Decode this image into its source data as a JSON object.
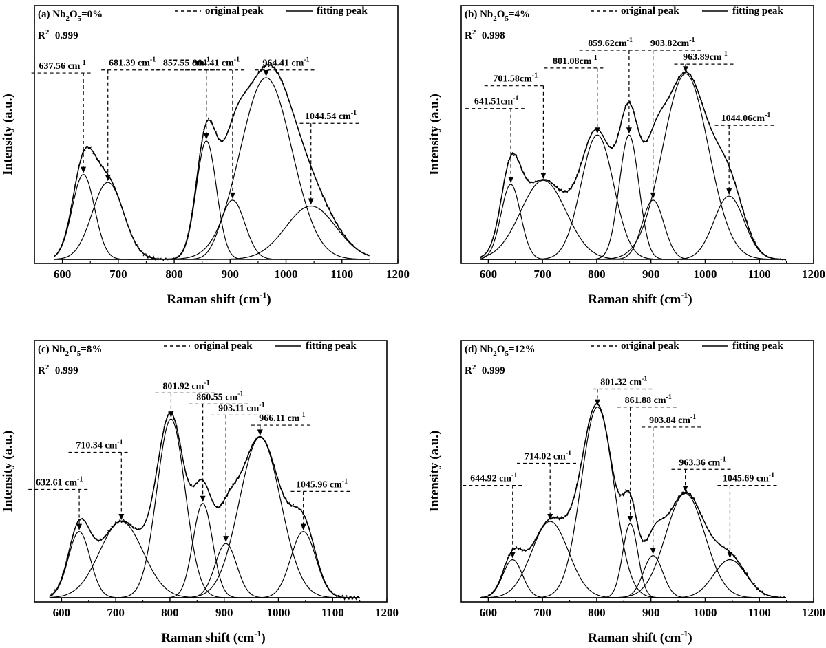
{
  "chart_data": [
    {
      "type": "line",
      "panel_label": "(a)",
      "composition": {
        "prefix": "Nb",
        "sub1": "2",
        "mid": "O",
        "sub2": "5",
        "value": "=0%"
      },
      "r_squared": {
        "prefix": "R",
        "sup": "2",
        "value": "=0.999"
      },
      "legend": {
        "original": "original peak",
        "fitting": "fitting peak",
        "position": "top-right"
      },
      "xlabel": {
        "text": "Raman shift (cm",
        "sup": "-1",
        "close": ")"
      },
      "ylabel": "Intensity (a.u.)",
      "xlim": [
        550,
        1200
      ],
      "xticks": [
        "600",
        "700",
        "800",
        "900",
        "1000",
        "1100",
        "1200"
      ],
      "ylim": [
        0,
        1
      ],
      "x_range": [
        585,
        1150
      ],
      "peaks": [
        {
          "label": "637.56 cm",
          "sup": "-1",
          "center": 637.56,
          "height": 0.43,
          "sigma": 20,
          "label_x": 600,
          "label_y": 0.965
        },
        {
          "label": "681.39 cm",
          "sup": "-1",
          "center": 681.39,
          "height": 0.39,
          "sigma": 28,
          "label_x": 725,
          "label_y": 0.98
        },
        {
          "label": "857.55 cm",
          "sup": "-1",
          "center": 857.55,
          "height": 0.6,
          "sigma": 18,
          "label_x": 822,
          "label_y": 0.98
        },
        {
          "label": "904.41 cm",
          "sup": "-1",
          "center": 904.41,
          "height": 0.3,
          "sigma": 22,
          "label_x": 875,
          "label_y": 0.98
        },
        {
          "label": "964.41 cm",
          "sup": "-1",
          "center": 964.41,
          "height": 0.92,
          "sigma": 46,
          "label_x": 1000,
          "label_y": 0.98
        },
        {
          "label": "1044.54 cm",
          "sup": "-1",
          "center": 1044.54,
          "height": 0.27,
          "sigma": 45,
          "label_x": 1080,
          "label_y": 0.71
        }
      ]
    },
    {
      "type": "line",
      "panel_label": "(b)",
      "composition": {
        "prefix": "Nb",
        "sub1": "2",
        "mid": "O",
        "sub2": "5",
        "value": "=4%"
      },
      "r_squared": {
        "prefix": "R",
        "sup": "2",
        "value": "=0.998"
      },
      "legend": {
        "original": "original peak",
        "fitting": "fitting peak",
        "position": "top-right"
      },
      "xlabel": {
        "text": "Raman shift (cm",
        "sup": "-1",
        "close": ")"
      },
      "ylabel": "Intensity (a.u.)",
      "xlim": [
        550,
        1200
      ],
      "xticks": [
        "600",
        "700",
        "800",
        "900",
        "1000",
        "1100",
        "1200"
      ],
      "ylim": [
        0,
        1
      ],
      "x_range": [
        585,
        1150
      ],
      "peaks": [
        {
          "label": "641.51cm",
          "sup": "-1",
          "center": 641.51,
          "height": 0.38,
          "sigma": 18,
          "label_x": 615,
          "label_y": 0.785
        },
        {
          "label": "701.58cm",
          "sup": "-1",
          "center": 701.58,
          "height": 0.4,
          "sigma": 42,
          "label_x": 650,
          "label_y": 0.9
        },
        {
          "label": "801.08cm",
          "sup": "-1",
          "center": 801.08,
          "height": 0.63,
          "sigma": 30,
          "label_x": 760,
          "label_y": 0.99
        },
        {
          "label": "859.62cm",
          "sup": "-1",
          "center": 859.62,
          "height": 0.63,
          "sigma": 18,
          "label_x": 825,
          "label_y": 1.08
        },
        {
          "label": "903.82cm",
          "sup": "-1",
          "center": 903.82,
          "height": 0.3,
          "sigma": 20,
          "label_x": 940,
          "label_y": 1.08
        },
        {
          "label": "963.89cm",
          "sup": "-1",
          "center": 963.89,
          "height": 0.94,
          "sigma": 42,
          "label_x": 1000,
          "label_y": 1.01
        },
        {
          "label": "1044.06cm",
          "sup": "-1",
          "center": 1044.06,
          "height": 0.32,
          "sigma": 28,
          "label_x": 1075,
          "label_y": 0.7
        }
      ]
    },
    {
      "type": "line",
      "panel_label": "(c)",
      "composition": {
        "prefix": "Nb",
        "sub1": "2",
        "mid": "O",
        "sub2": "5",
        "value": "=8%"
      },
      "r_squared": {
        "prefix": "R",
        "sup": "2",
        "value": "=0.999"
      },
      "legend": {
        "original": "original peak",
        "fitting": "fitting peak",
        "position": "top-right"
      },
      "xlabel": {
        "text": "Raman shift (cm",
        "sup": "-1",
        "close": ")"
      },
      "ylabel": "Intensity (a.u.)",
      "xlim": [
        550,
        1200
      ],
      "xticks": [
        "600",
        "700",
        "800",
        "900",
        "1000",
        "1100",
        "1200"
      ],
      "ylim": [
        0,
        1
      ],
      "x_range": [
        578,
        1150
      ],
      "peaks": [
        {
          "label": "632.61 cm",
          "sup": "-1",
          "center": 632.61,
          "height": 0.33,
          "sigma": 20,
          "label_x": 596,
          "label_y": 0.56
        },
        {
          "label": "710.34 cm",
          "sup": "-1",
          "center": 710.34,
          "height": 0.38,
          "sigma": 40,
          "label_x": 670,
          "label_y": 0.745
        },
        {
          "label": "801.92 cm",
          "sup": "-1",
          "center": 801.92,
          "height": 0.89,
          "sigma": 26,
          "label_x": 830,
          "label_y": 1.04
        },
        {
          "label": "860.55 cm",
          "sup": "-1",
          "center": 860.55,
          "height": 0.47,
          "sigma": 18,
          "label_x": 892,
          "label_y": 0.985
        },
        {
          "label": "903.11 cm",
          "sup": "-1",
          "center": 903.11,
          "height": 0.27,
          "sigma": 20,
          "label_x": 932,
          "label_y": 0.93
        },
        {
          "label": "966.11 cm",
          "sup": "-1",
          "center": 966.11,
          "height": 0.8,
          "sigma": 38,
          "label_x": 1007,
          "label_y": 0.88
        },
        {
          "label": "1045.96 cm",
          "sup": "-1",
          "center": 1045.96,
          "height": 0.33,
          "sigma": 23,
          "label_x": 1080,
          "label_y": 0.55
        }
      ]
    },
    {
      "type": "line",
      "panel_label": "(d)",
      "composition": {
        "prefix": "Nb",
        "sub1": "2",
        "mid": "O",
        "sub2": "5",
        "value": "=12%"
      },
      "r_squared": {
        "prefix": "R",
        "sup": "2",
        "value": "=0.999"
      },
      "legend": {
        "original": "original peak",
        "fitting": "fitting peak",
        "position": "top-right"
      },
      "xlabel": {
        "text": "Raman shift (cm",
        "sup": "-1",
        "close": ")"
      },
      "ylabel": "Intensity (a.u.)",
      "xlim": [
        550,
        1200
      ],
      "xticks": [
        "600",
        "700",
        "800",
        "900",
        "1000",
        "1100",
        "1200"
      ],
      "ylim": [
        0,
        1
      ],
      "x_range": [
        585,
        1150
      ],
      "peaks": [
        {
          "label": "644.92 cm",
          "sup": "-1",
          "center": 644.92,
          "height": 0.19,
          "sigma": 18,
          "label_x": 610,
          "label_y": 0.58
        },
        {
          "label": "714.02 cm",
          "sup": "-1",
          "center": 714.02,
          "height": 0.38,
          "sigma": 34,
          "label_x": 710,
          "label_y": 0.69
        },
        {
          "label": "801.32 cm",
          "sup": "-1",
          "center": 801.32,
          "height": 0.95,
          "sigma": 30,
          "label_x": 850,
          "label_y": 1.06
        },
        {
          "label": "861.88 cm",
          "sup": "-1",
          "center": 861.88,
          "height": 0.37,
          "sigma": 14,
          "label_x": 895,
          "label_y": 0.97
        },
        {
          "label": "903.84 cm",
          "sup": "-1",
          "center": 903.84,
          "height": 0.21,
          "sigma": 18,
          "label_x": 940,
          "label_y": 0.87
        },
        {
          "label": "963.36 cm",
          "sup": "-1",
          "center": 963.36,
          "height": 0.52,
          "sigma": 36,
          "label_x": 995,
          "label_y": 0.66
        },
        {
          "label": "1045.69 cm",
          "sup": "-1",
          "center": 1045.69,
          "height": 0.19,
          "sigma": 30,
          "label_x": 1080,
          "label_y": 0.58
        }
      ]
    }
  ]
}
